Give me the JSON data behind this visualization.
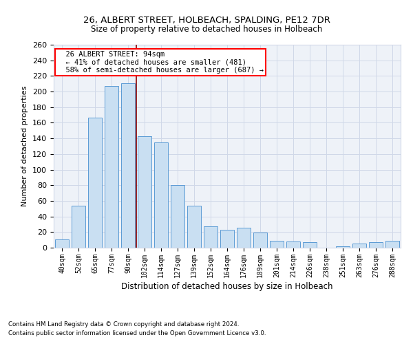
{
  "title1": "26, ALBERT STREET, HOLBEACH, SPALDING, PE12 7DR",
  "title2": "Size of property relative to detached houses in Holbeach",
  "xlabel": "Distribution of detached houses by size in Holbeach",
  "ylabel": "Number of detached properties",
  "footnote1": "Contains HM Land Registry data © Crown copyright and database right 2024.",
  "footnote2": "Contains public sector information licensed under the Open Government Licence v3.0.",
  "annotation_title": "26 ALBERT STREET: 94sqm",
  "annotation_line1": "← 41% of detached houses are smaller (481)",
  "annotation_line2": "58% of semi-detached houses are larger (687) →",
  "bar_edge_color": "#5b9bd5",
  "bar_face_color": "#c9dff2",
  "vline_color": "#8b0000",
  "categories": [
    "40sqm",
    "52sqm",
    "65sqm",
    "77sqm",
    "90sqm",
    "102sqm",
    "114sqm",
    "127sqm",
    "139sqm",
    "152sqm",
    "164sqm",
    "176sqm",
    "189sqm",
    "201sqm",
    "214sqm",
    "226sqm",
    "238sqm",
    "251sqm",
    "263sqm",
    "276sqm",
    "288sqm"
  ],
  "values": [
    11,
    54,
    167,
    207,
    211,
    143,
    135,
    80,
    54,
    27,
    23,
    26,
    19,
    9,
    8,
    7,
    0,
    2,
    5,
    7,
    9
  ],
  "ylim": [
    0,
    260
  ],
  "yticks": [
    0,
    20,
    40,
    60,
    80,
    100,
    120,
    140,
    160,
    180,
    200,
    220,
    240,
    260
  ],
  "grid_color": "#d0d8e8",
  "bg_color": "#eef2f8",
  "vline_x_index": 4.5
}
